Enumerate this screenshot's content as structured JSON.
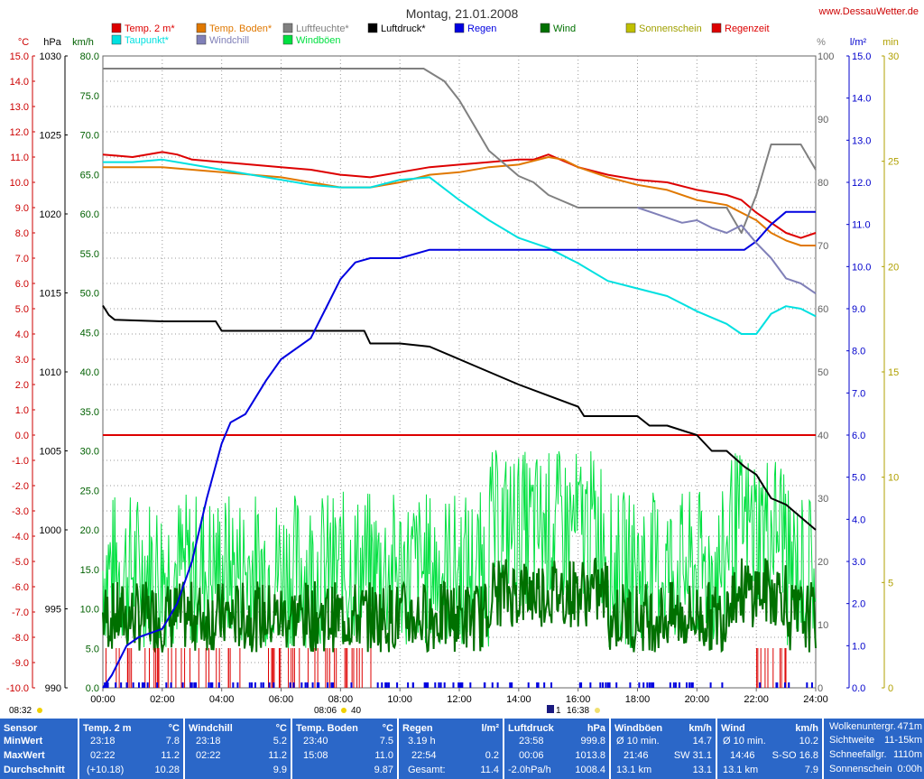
{
  "header": {
    "title": "Montag, 21.01.2008",
    "site": "www.DessauWetter.de"
  },
  "legend": [
    {
      "label": "Temp. 2 m*",
      "color": "#dd0000"
    },
    {
      "label": "Taupunkt*",
      "color": "#00e0e0"
    },
    {
      "label": "Temp. Boden*",
      "color": "#e07800"
    },
    {
      "label": "Windchill",
      "color": "#8080b8"
    },
    {
      "label": "Luftfeuchte*",
      "color": "#808080"
    },
    {
      "label": "Windböen",
      "color": "#00e040"
    },
    {
      "label": "Luftdruck*",
      "color": "#000000"
    },
    {
      "label": "Regen",
      "color": "#0000e0"
    },
    {
      "label": "Wind",
      "color": "#007000"
    },
    {
      "label": "Sonnenschein",
      "color": "#c0c000"
    },
    {
      "label": "Regenzeit",
      "color": "#dd0000"
    }
  ],
  "axis_units": {
    "temp": "°C",
    "press": "hPa",
    "wind": "km/h",
    "hum": "%",
    "rain": "l/m²",
    "sun": "min"
  },
  "sun_markers": {
    "sunrise": "08:06",
    "sunrise_min": "40",
    "sunset": "16:38",
    "sunset_prefix": "1",
    "left": "08:32"
  },
  "chart_data": {
    "type": "line",
    "x_axis": {
      "min_hour": 0,
      "max_hour": 24,
      "ticks": [
        "00:00",
        "02:00",
        "04:00",
        "06:00",
        "08:00",
        "10:00",
        "12:00",
        "14:00",
        "16:00",
        "18:00",
        "20:00",
        "22:00",
        "24:00"
      ]
    },
    "y_axes": {
      "temp": {
        "min": -10,
        "max": 15,
        "ticks": [
          "15.0",
          "14.0",
          "13.0",
          "12.0",
          "11.0",
          "10.0",
          "9.0",
          "8.0",
          "7.0",
          "6.0",
          "5.0",
          "4.0",
          "3.0",
          "2.0",
          "1.0",
          "0.0",
          "-1.0",
          "-2.0",
          "-3.0",
          "-4.0",
          "-5.0",
          "-6.0",
          "-7.0",
          "-8.0",
          "-9.0",
          "-10.0"
        ]
      },
      "press": {
        "min": 990,
        "max": 1030,
        "ticks": [
          "1030",
          "1025",
          "1020",
          "1015",
          "1010",
          "1005",
          "1000",
          "995",
          "990"
        ]
      },
      "wind": {
        "min": 0,
        "max": 80,
        "ticks": [
          "80.0",
          "75.0",
          "70.0",
          "65.0",
          "60.0",
          "55.0",
          "50.0",
          "45.0",
          "40.0",
          "35.0",
          "30.0",
          "25.0",
          "20.0",
          "15.0",
          "10.0",
          "5.0",
          "0.0"
        ]
      },
      "hum": {
        "min": 0,
        "max": 100,
        "ticks": [
          "100",
          "90",
          "80",
          "70",
          "60",
          "50",
          "40",
          "30",
          "20",
          "10",
          "0"
        ]
      },
      "rain": {
        "min": 0,
        "max": 15,
        "ticks": [
          "15.0",
          "14.0",
          "13.0",
          "12.0",
          "11.0",
          "10.0",
          "9.0",
          "8.0",
          "7.0",
          "6.0",
          "5.0",
          "4.0",
          "3.0",
          "2.0",
          "1.0",
          "0.0"
        ]
      },
      "sun": {
        "min": 0,
        "max": 30,
        "ticks": [
          "30",
          "25",
          "20",
          "15",
          "10",
          "5",
          "0"
        ]
      }
    },
    "series": [
      {
        "name": "Temp. 2 m*",
        "axis": "temp",
        "color": "#dd0000",
        "x": [
          0,
          1,
          2,
          2.5,
          3,
          4,
          5,
          6,
          7,
          8,
          9,
          10,
          11,
          12,
          13,
          14,
          14.5,
          15,
          16,
          17,
          18,
          19,
          20,
          21,
          21.5,
          22,
          22.5,
          23,
          23.5,
          24
        ],
        "y": [
          11.1,
          11.0,
          11.2,
          11.1,
          10.9,
          10.8,
          10.7,
          10.6,
          10.5,
          10.3,
          10.2,
          10.4,
          10.6,
          10.7,
          10.8,
          10.9,
          10.9,
          11.1,
          10.6,
          10.3,
          10.1,
          10.0,
          9.7,
          9.5,
          9.3,
          8.8,
          8.4,
          8.0,
          7.8,
          8.0
        ]
      },
      {
        "name": "Temp. Boden*",
        "axis": "temp",
        "color": "#e07800",
        "x": [
          0,
          2,
          4,
          6,
          7,
          8,
          9,
          10,
          11,
          12,
          13,
          14,
          15,
          15.5,
          16,
          17,
          18,
          19,
          20,
          21,
          22,
          22.5,
          23,
          23.5,
          24
        ],
        "y": [
          10.6,
          10.6,
          10.4,
          10.2,
          10.0,
          9.8,
          9.8,
          10.0,
          10.3,
          10.4,
          10.6,
          10.7,
          11.0,
          10.9,
          10.6,
          10.2,
          9.9,
          9.7,
          9.3,
          9.1,
          8.5,
          8.0,
          7.7,
          7.5,
          7.5
        ]
      },
      {
        "name": "Taupunkt*",
        "axis": "temp",
        "color": "#00e0e0",
        "x": [
          0,
          1,
          2,
          3,
          4,
          5,
          6,
          7,
          8,
          9,
          10,
          11,
          12,
          13,
          14,
          15,
          16,
          17,
          18,
          19,
          20,
          21,
          21.5,
          22,
          22.5,
          23,
          23.5,
          24
        ],
        "y": [
          10.8,
          10.8,
          10.9,
          10.7,
          10.5,
          10.3,
          10.1,
          9.9,
          9.8,
          9.8,
          10.1,
          10.2,
          9.3,
          8.5,
          7.8,
          7.4,
          6.8,
          6.1,
          5.8,
          5.5,
          4.9,
          4.4,
          4.0,
          4.0,
          4.8,
          5.1,
          5.0,
          4.7
        ]
      },
      {
        "name": "Luftfeuchte*",
        "axis": "hum",
        "color": "#808080",
        "x": [
          0,
          3,
          6,
          9,
          10.8,
          11.5,
          12,
          12.5,
          13,
          13.5,
          14,
          14.5,
          15,
          15.5,
          16,
          16.5,
          17,
          18,
          19,
          20,
          21,
          21.5,
          22,
          22.5,
          23,
          23.5,
          24
        ],
        "y": [
          98,
          98,
          98,
          98,
          98,
          96,
          93,
          89,
          85,
          83,
          81,
          80,
          78,
          77,
          76,
          76,
          76,
          76,
          76,
          76,
          76,
          72,
          78,
          86,
          86,
          86,
          82
        ]
      },
      {
        "name": "Luftdruck*",
        "axis": "press",
        "color": "#000000",
        "x": [
          0,
          0.2,
          0.4,
          2,
          3.8,
          4,
          6,
          8,
          8.8,
          9,
          10,
          11,
          12,
          13,
          14,
          15,
          16,
          16.2,
          17,
          18,
          18.4,
          19,
          20,
          20.5,
          21,
          21.6,
          22,
          22.5,
          23,
          23.5,
          24
        ],
        "y": [
          1014.2,
          1013.6,
          1013.3,
          1013.2,
          1013.2,
          1012.6,
          1012.6,
          1012.6,
          1012.6,
          1011.8,
          1011.8,
          1011.6,
          1010.8,
          1010.0,
          1009.2,
          1008.5,
          1007.8,
          1007.2,
          1007.2,
          1007.2,
          1006.6,
          1006.6,
          1006.0,
          1005.0,
          1005.0,
          1004.0,
          1003.5,
          1002.0,
          1001.6,
          1000.8,
          1000.0
        ]
      },
      {
        "name": "Regen",
        "axis": "rain",
        "color": "#0000e0",
        "x": [
          0,
          0.3,
          0.8,
          1.2,
          2,
          2.5,
          3,
          3.5,
          4,
          4.3,
          4.8,
          5.5,
          6,
          7,
          7.5,
          8,
          8.5,
          9,
          10,
          11,
          12,
          14,
          16,
          18,
          20,
          21,
          21.6,
          22,
          22.5,
          23,
          24
        ],
        "y": [
          0,
          0.3,
          1.0,
          1.2,
          1.4,
          2.0,
          3.0,
          4.5,
          5.8,
          6.3,
          6.5,
          7.3,
          7.8,
          8.3,
          9.0,
          9.7,
          10.1,
          10.2,
          10.2,
          10.4,
          10.4,
          10.4,
          10.4,
          10.4,
          10.4,
          10.4,
          10.4,
          10.6,
          11.0,
          11.3,
          11.3
        ]
      },
      {
        "name": "Windchill",
        "axis": "temp",
        "color": "#8080b8",
        "x": [
          18,
          18.5,
          19,
          19.5,
          20,
          20.5,
          21,
          21.5,
          22,
          22.5,
          23,
          23.5,
          24
        ],
        "y": [
          9.0,
          8.8,
          8.6,
          8.4,
          8.5,
          8.2,
          8.0,
          8.3,
          7.6,
          7.0,
          6.2,
          6.0,
          5.6
        ]
      }
    ],
    "wind_stats": {
      "wind_mean_kmh": 9,
      "gust_mean_kmh": 15
    }
  },
  "table": {
    "sensor": {
      "title": "Sensor",
      "rows": [
        "MinWert",
        "MaxWert",
        "Durchschnitt"
      ]
    },
    "temp2m": {
      "title": "Temp. 2 m",
      "unit": "°C",
      "rows": [
        [
          "23:18",
          "7.8"
        ],
        [
          "02:22",
          "11.2"
        ],
        [
          "(+10.18)",
          "10.28"
        ]
      ]
    },
    "windchill": {
      "title": "Windchill",
      "unit": "°C",
      "rows": [
        [
          "23:18",
          "5.2"
        ],
        [
          "02:22",
          "11.2"
        ],
        [
          "",
          "9.9"
        ]
      ]
    },
    "boden": {
      "title": "Temp. Boden",
      "unit": "°C",
      "rows": [
        [
          "23:40",
          "7.5"
        ],
        [
          "15:08",
          "11.0"
        ],
        [
          "",
          "9.87"
        ]
      ]
    },
    "regen": {
      "title": "Regen",
      "unit": "l/m²",
      "rows": [
        [
          "3.19 h",
          ""
        ],
        [
          "22:54",
          "0.2"
        ],
        [
          "Gesamt:",
          "11.4"
        ]
      ]
    },
    "druck": {
      "title": "Luftdruck",
      "unit": "hPa",
      "rows": [
        [
          "23:58",
          "999.8"
        ],
        [
          "00:06",
          "1013.8"
        ],
        [
          "-2.0hPa/h",
          "1008.4"
        ]
      ]
    },
    "boeen": {
      "title": "Windböen",
      "unit": "km/h",
      "rows": [
        [
          "Ø 10 min.",
          "14.7"
        ],
        [
          "21:46",
          "SW 31.1"
        ],
        [
          "13.1 km",
          "13.1"
        ]
      ]
    },
    "wind": {
      "title": "Wind",
      "unit": "km/h",
      "rows": [
        [
          "Ø 10 min.",
          "10.2"
        ],
        [
          "14:46",
          "S-SO 16.8"
        ],
        [
          "13.1 km",
          "7.9"
        ]
      ]
    },
    "extra": {
      "rows": [
        [
          "Wolkenuntergr.",
          "471m"
        ],
        [
          "Sichtweite",
          "11-15km"
        ],
        [
          "Schneefallgr.",
          "1110m"
        ],
        [
          "Sonnenschein",
          "0:00h"
        ]
      ]
    }
  }
}
